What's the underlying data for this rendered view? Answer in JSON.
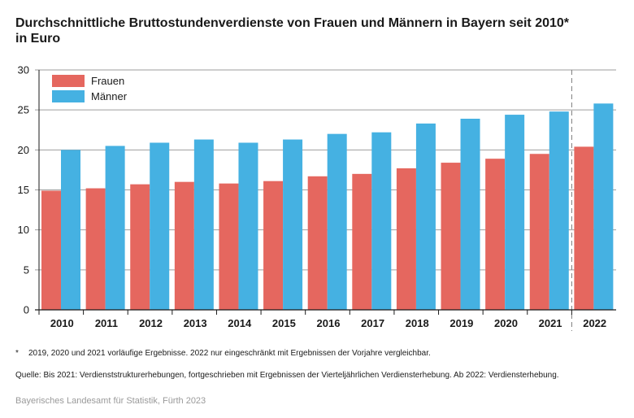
{
  "title": "Durchschnittliche Bruttostundenverdienste von Frauen und Männern in Bayern seit 2010*",
  "subtitle": "in Euro",
  "footnote": {
    "marker": "*",
    "text": "2019, 2020 und 2021 vorläufige Ergebnisse. 2022 nur eingeschränkt mit Ergebnissen der Vorjahre vergleichbar."
  },
  "source": "Quelle: Bis 2021: Verdienststrukturerhebungen, fortgeschrieben mit Ergebnissen der Vierteljährlichen Verdiensterhebung. Ab 2022: Verdiensterhebung.",
  "credit": "Bayerisches Landesamt für Statistik, Fürth 2023",
  "colors": {
    "frauen": "#e5675f",
    "maenner": "#45b1e2"
  },
  "chart_data": {
    "type": "bar",
    "categories": [
      "2010",
      "2011",
      "2012",
      "2013",
      "2014",
      "2015",
      "2016",
      "2017",
      "2018",
      "2019",
      "2020",
      "2021",
      "2022"
    ],
    "series": [
      {
        "name": "Frauen",
        "values": [
          14.9,
          15.2,
          15.7,
          16.0,
          15.8,
          16.1,
          16.7,
          17.0,
          17.7,
          18.4,
          18.9,
          19.5,
          20.4
        ]
      },
      {
        "name": "Männer",
        "values": [
          20.0,
          20.5,
          20.9,
          21.3,
          20.9,
          21.3,
          22.0,
          22.2,
          23.3,
          23.9,
          24.4,
          24.8,
          25.8
        ]
      }
    ],
    "ylim": [
      0,
      30
    ],
    "yticks": [
      0,
      5,
      10,
      15,
      20,
      25,
      30
    ],
    "grid": true,
    "legend": "top-left"
  }
}
